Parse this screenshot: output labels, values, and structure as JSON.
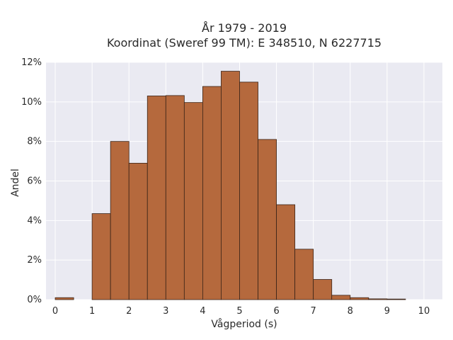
{
  "chart_data": {
    "type": "bar",
    "title_lines": [
      "År 1979 - 2019",
      "Koordinat (Sweref 99 TM): E 348510, N 6227715"
    ],
    "xlabel": "Vågperiod (s)",
    "ylabel": "Andel",
    "bin_width": 0.5,
    "xlim": [
      -0.25,
      10.5
    ],
    "ylim": [
      0,
      12
    ],
    "x_ticks": [
      0,
      1,
      2,
      3,
      4,
      5,
      6,
      7,
      8,
      9,
      10
    ],
    "x_tick_labels": [
      "0",
      "1",
      "2",
      "3",
      "4",
      "5",
      "6",
      "7",
      "8",
      "9",
      "10"
    ],
    "y_ticks": [
      0,
      2,
      4,
      6,
      8,
      10,
      12
    ],
    "y_tick_labels": [
      "0%",
      "2%",
      "4%",
      "6%",
      "8%",
      "10%",
      "12%"
    ],
    "bin_starts": [
      0,
      0.5,
      1,
      1.5,
      2,
      2.5,
      3,
      3.5,
      4,
      4.5,
      5,
      5.5,
      6,
      6.5,
      7,
      7.5,
      8,
      8.5,
      9,
      9.5
    ],
    "values": [
      0.1,
      0,
      4.35,
      8.0,
      6.9,
      10.3,
      10.32,
      9.97,
      10.78,
      11.55,
      11.0,
      8.1,
      4.8,
      2.55,
      1.02,
      0.22,
      0.1,
      0.04,
      0.03,
      0
    ],
    "bar_color": "#b5693d",
    "bar_edge_color": "#3a2418",
    "plot_background": "#eaeaf2",
    "grid": true,
    "grid_color": "#ffffff"
  }
}
